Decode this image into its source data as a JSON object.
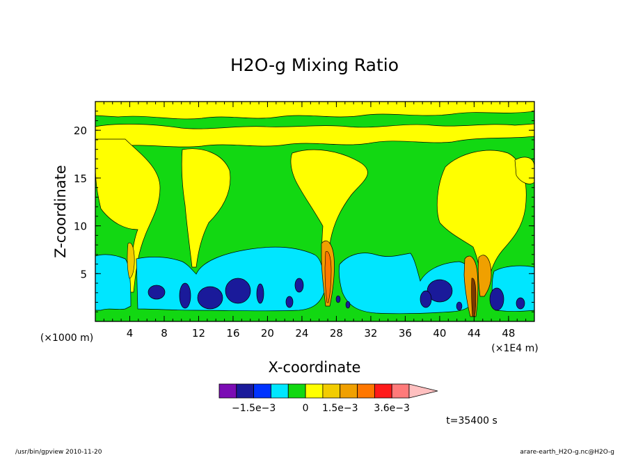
{
  "chart_data": {
    "type": "heatmap",
    "title": "H2O-g Mixing Ratio",
    "xlabel": "X-coordinate",
    "ylabel": "Z-coordinate",
    "x_unit_left": "(×1000 m)",
    "x_unit_right": "(×1E4 m)",
    "xlim": [
      0,
      51
    ],
    "ylim": [
      0,
      23
    ],
    "xticks": [
      "4",
      "8",
      "12",
      "16",
      "20",
      "24",
      "28",
      "32",
      "36",
      "40",
      "44",
      "48"
    ],
    "yticks": [
      "5",
      "10",
      "15",
      "20"
    ],
    "colorbar": {
      "colors": [
        "#7b0cb4",
        "#1a1a9a",
        "#0033ff",
        "#00e6ff",
        "#12d812",
        "#ffff00",
        "#f2cc00",
        "#f0a000",
        "#ff7700",
        "#ff1a1a",
        "#ff7a7a",
        "#ffc0c0"
      ],
      "labels": [
        "−1.5e−3",
        "0",
        "1.5e−3",
        "3.6e−3"
      ]
    },
    "time_label": "t=35400 s"
  },
  "footer": {
    "left": "/usr/bin/gpview   2010-11-20",
    "right": "arare-earth_H2O-g.nc@H2O-g"
  }
}
